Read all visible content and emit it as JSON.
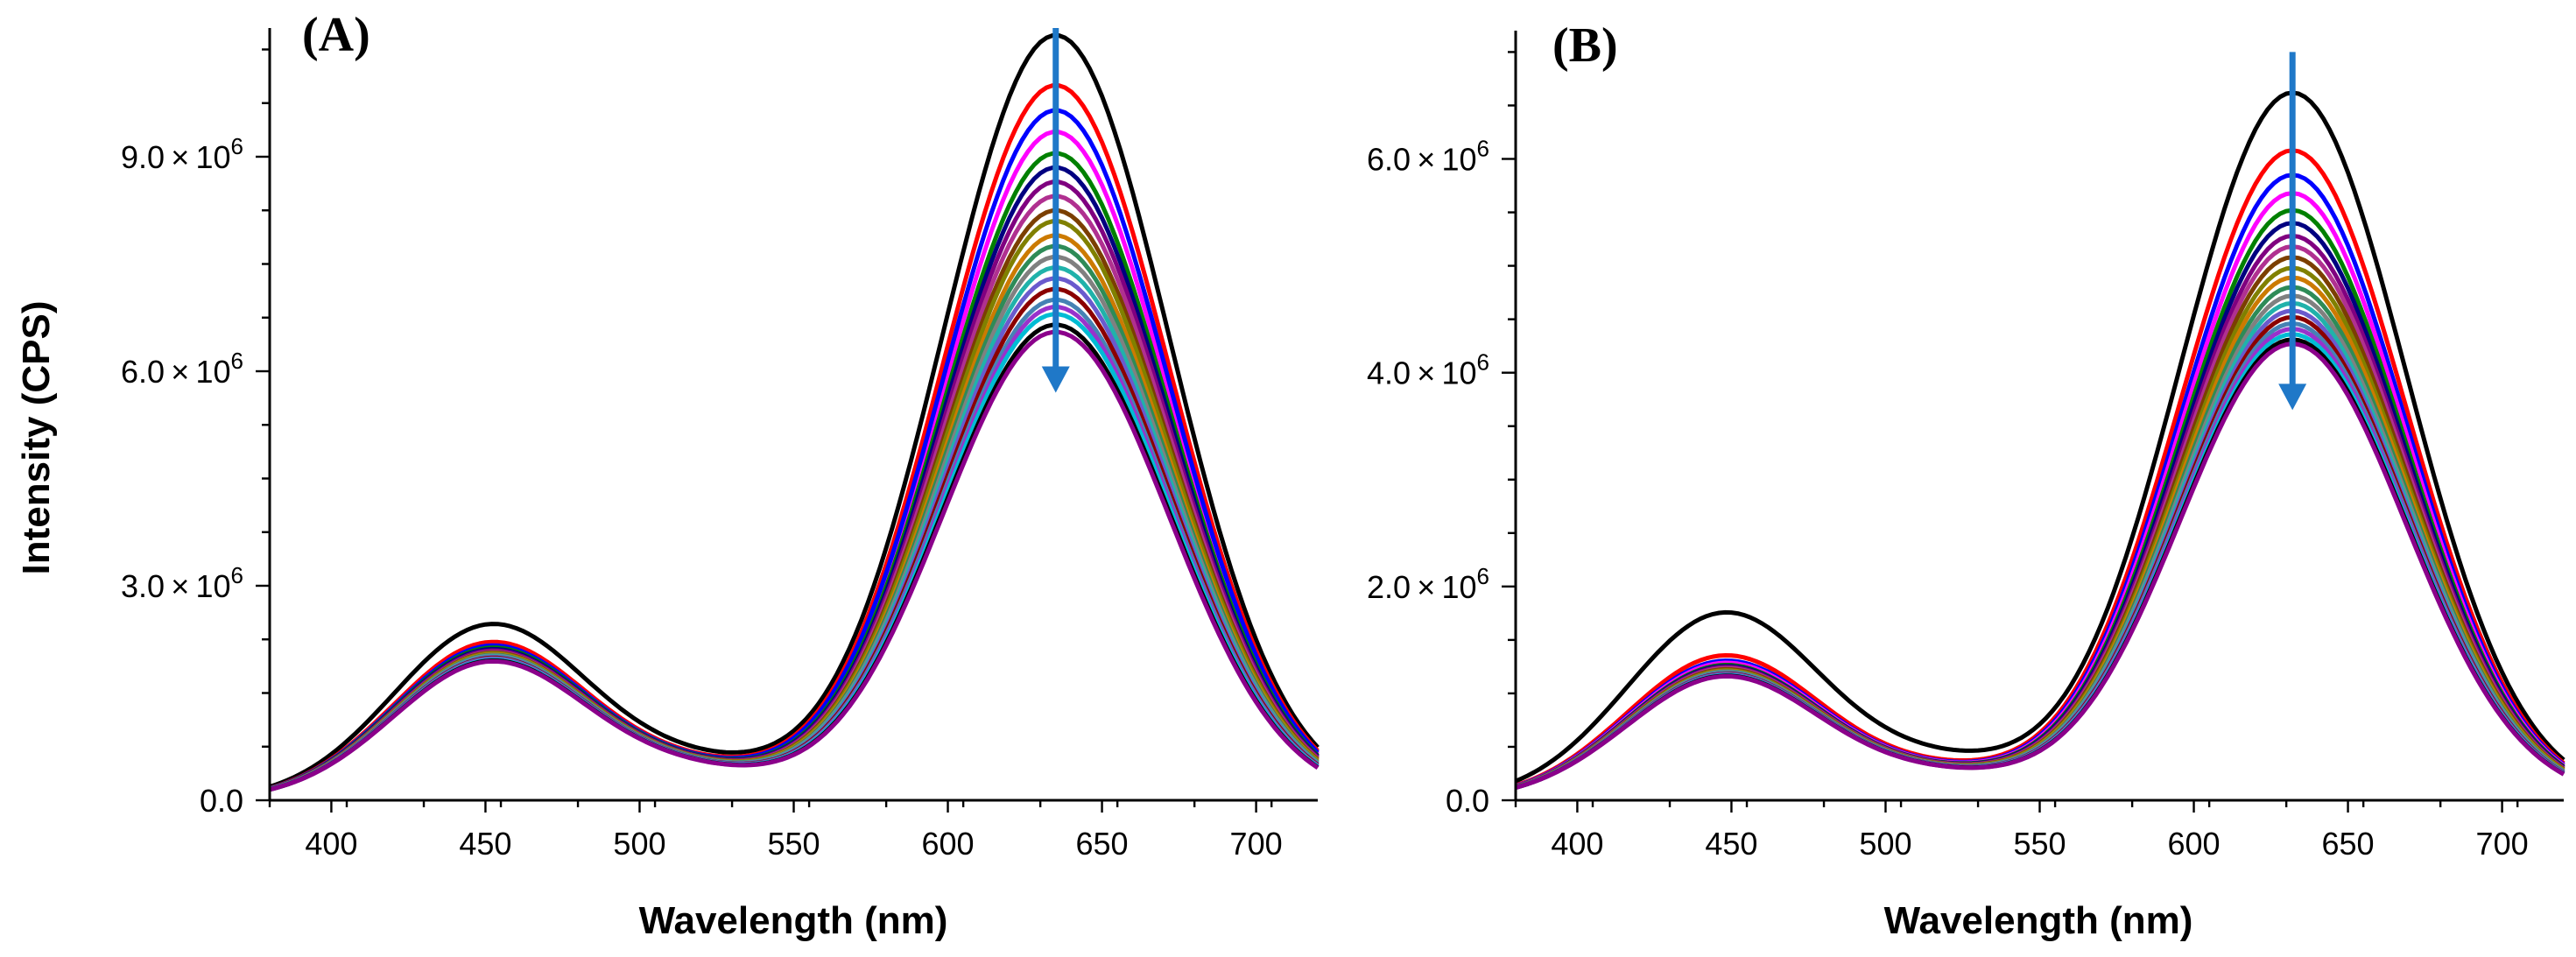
{
  "figure": {
    "ylabel": "Intensity (CPS)"
  },
  "chart_data": [
    {
      "type": "line",
      "panel": "(A)",
      "xlabel": "Wavelength (nm)",
      "ylabel": "Intensity (CPS)",
      "xlim": [
        380,
        720
      ],
      "ylim": [
        0,
        10800000
      ],
      "x_ticks": [
        400,
        450,
        500,
        550,
        600,
        650,
        700
      ],
      "x_tick_labels": [
        "400",
        "450",
        "500",
        "550",
        "600",
        "650",
        "700"
      ],
      "y_ticks": [
        0,
        3000000,
        6000000,
        9000000
      ],
      "y_tick_labels": [
        {
          "mant": "0.0",
          "exp": ""
        },
        {
          "mant": "3.0",
          "exp": "6"
        },
        {
          "mant": "6.0",
          "exp": "6"
        },
        {
          "mant": "9.0",
          "exp": "6"
        }
      ],
      "annotation": "arrow at 635 nm pointing down (decreasing intensity)",
      "arrow_x": 635,
      "arrow_from": 10800000,
      "arrow_to": 5700000,
      "peak_nm": 635,
      "peak1_nm": 442,
      "peak1_series_nm": 452,
      "series": [
        {
          "name": "s1",
          "color": "#000000",
          "peak1": 2450000,
          "peak2": 10700000
        },
        {
          "name": "s2",
          "color": "#ff0000",
          "peak1": 2200000,
          "peak2": 10000000
        },
        {
          "name": "s3",
          "color": "#ff00ff",
          "peak1": 2150000,
          "peak2": 9350000
        },
        {
          "name": "s4",
          "color": "#0000ff",
          "peak1": 2150000,
          "peak2": 9650000
        },
        {
          "name": "s5",
          "color": "#008000",
          "peak1": 2120000,
          "peak2": 9050000
        },
        {
          "name": "s6",
          "color": "#000080",
          "peak1": 2100000,
          "peak2": 8850000
        },
        {
          "name": "s7",
          "color": "#800080",
          "peak1": 2080000,
          "peak2": 8650000
        },
        {
          "name": "s8",
          "color": "#b03090",
          "peak1": 2060000,
          "peak2": 8450000
        },
        {
          "name": "s9",
          "color": "#7b3f00",
          "peak1": 2050000,
          "peak2": 8250000
        },
        {
          "name": "s10",
          "color": "#808000",
          "peak1": 2040000,
          "peak2": 8100000
        },
        {
          "name": "s11",
          "color": "#cc7a00",
          "peak1": 2030000,
          "peak2": 7900000
        },
        {
          "name": "s12",
          "color": "#2e8b57",
          "peak1": 2020000,
          "peak2": 7750000
        },
        {
          "name": "s13",
          "color": "#808080",
          "peak1": 2010000,
          "peak2": 7600000
        },
        {
          "name": "s14",
          "color": "#20b2aa",
          "peak1": 2000000,
          "peak2": 7450000
        },
        {
          "name": "s15",
          "color": "#6a5acd",
          "peak1": 1990000,
          "peak2": 7300000
        },
        {
          "name": "s16",
          "color": "#8b0000",
          "peak1": 1980000,
          "peak2": 7150000
        },
        {
          "name": "s17",
          "color": "#4682b4",
          "peak1": 1970000,
          "peak2": 7000000
        },
        {
          "name": "s18",
          "color": "#9932cc",
          "peak1": 1960000,
          "peak2": 6900000
        },
        {
          "name": "s19",
          "color": "#00bcd4",
          "peak1": 1950000,
          "peak2": 6800000
        },
        {
          "name": "s20",
          "color": "#000000",
          "peak1": 1940000,
          "peak2": 6650000
        },
        {
          "name": "s21",
          "color": "#8b008b",
          "peak1": 1930000,
          "peak2": 6550000
        }
      ]
    },
    {
      "type": "line",
      "panel": "(B)",
      "xlabel": "Wavelength (nm)",
      "ylabel": "",
      "xlim": [
        380,
        720
      ],
      "ylim": [
        0,
        7200000
      ],
      "x_ticks": [
        400,
        450,
        500,
        550,
        600,
        650,
        700
      ],
      "x_tick_labels": [
        "400",
        "450",
        "500",
        "550",
        "600",
        "650",
        "700"
      ],
      "y_ticks": [
        0,
        2000000,
        4000000,
        6000000
      ],
      "y_tick_labels": [
        {
          "mant": "0.0",
          "exp": ""
        },
        {
          "mant": "2.0",
          "exp": "6"
        },
        {
          "mant": "4.0",
          "exp": "6"
        },
        {
          "mant": "6.0",
          "exp": "6"
        }
      ],
      "annotation": "arrow at 632 nm pointing down (decreasing intensity)",
      "arrow_x": 632,
      "arrow_from": 7000000,
      "arrow_to": 3650000,
      "peak_nm": 632,
      "peak1_nm": 445,
      "peak1_series_nm": 448,
      "series": [
        {
          "name": "s1",
          "color": "#000000",
          "peak1": 1750000,
          "peak2": 6620000
        },
        {
          "name": "s2",
          "color": "#ff0000",
          "peak1": 1350000,
          "peak2": 6080000
        },
        {
          "name": "s3",
          "color": "#0000ff",
          "peak1": 1300000,
          "peak2": 5850000
        },
        {
          "name": "s4",
          "color": "#ff00ff",
          "peak1": 1280000,
          "peak2": 5680000
        },
        {
          "name": "s5",
          "color": "#008000",
          "peak1": 1260000,
          "peak2": 5520000
        },
        {
          "name": "s6",
          "color": "#000080",
          "peak1": 1250000,
          "peak2": 5400000
        },
        {
          "name": "s7",
          "color": "#800080",
          "peak1": 1240000,
          "peak2": 5280000
        },
        {
          "name": "s8",
          "color": "#b03090",
          "peak1": 1230000,
          "peak2": 5180000
        },
        {
          "name": "s9",
          "color": "#7b3f00",
          "peak1": 1220000,
          "peak2": 5080000
        },
        {
          "name": "s10",
          "color": "#808000",
          "peak1": 1210000,
          "peak2": 4980000
        },
        {
          "name": "s11",
          "color": "#cc7a00",
          "peak1": 1205000,
          "peak2": 4890000
        },
        {
          "name": "s12",
          "color": "#2e8b57",
          "peak1": 1200000,
          "peak2": 4800000
        },
        {
          "name": "s13",
          "color": "#808080",
          "peak1": 1195000,
          "peak2": 4720000
        },
        {
          "name": "s14",
          "color": "#20b2aa",
          "peak1": 1190000,
          "peak2": 4650000
        },
        {
          "name": "s15",
          "color": "#6a5acd",
          "peak1": 1185000,
          "peak2": 4580000
        },
        {
          "name": "s16",
          "color": "#8b0000",
          "peak1": 1180000,
          "peak2": 4520000
        },
        {
          "name": "s17",
          "color": "#4682b4",
          "peak1": 1175000,
          "peak2": 4460000
        },
        {
          "name": "s18",
          "color": "#9932cc",
          "peak1": 1170000,
          "peak2": 4410000
        },
        {
          "name": "s19",
          "color": "#00bcd4",
          "peak1": 1165000,
          "peak2": 4360000
        },
        {
          "name": "s20",
          "color": "#000000",
          "peak1": 1160000,
          "peak2": 4310000
        },
        {
          "name": "s21",
          "color": "#8b008b",
          "peak1": 1155000,
          "peak2": 4270000
        }
      ]
    }
  ],
  "arrow_color": "#1f78c8"
}
